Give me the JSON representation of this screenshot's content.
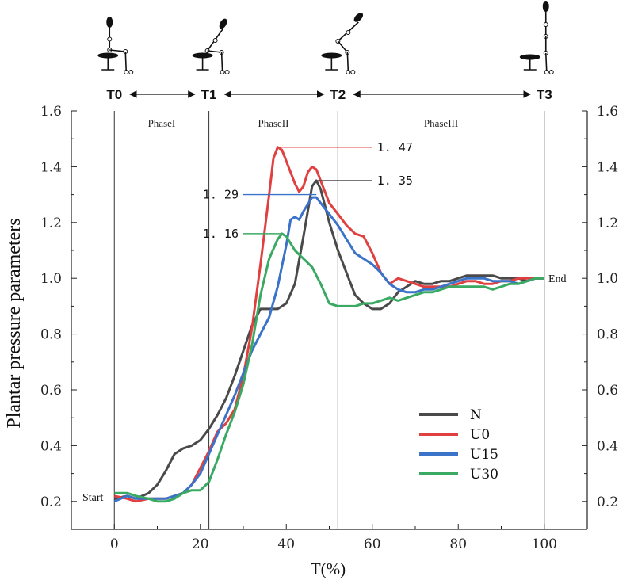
{
  "chart_data": {
    "type": "line",
    "title": "",
    "xlabel": "T(%)",
    "ylabel": "Plantar pressure parameters",
    "xlim": [
      -10,
      110
    ],
    "ylim": [
      0.1,
      1.6
    ],
    "x_ticks": [
      0,
      20,
      40,
      60,
      80,
      100
    ],
    "y_ticks": [
      0.2,
      0.4,
      0.6,
      0.8,
      1.0,
      1.2,
      1.4,
      1.6
    ],
    "y_tick_labels": [
      "0.2",
      "0.4",
      "0.6",
      "0.8",
      "1.0",
      "1.2",
      "1.4",
      "1.6"
    ],
    "phase_markers": [
      {
        "label": "T0",
        "x": 0
      },
      {
        "label": "T1",
        "x": 22
      },
      {
        "label": "T2",
        "x": 52
      },
      {
        "label": "T3",
        "x": 100
      }
    ],
    "phases": [
      {
        "label": "PhaseI",
        "from": 0,
        "to": 22
      },
      {
        "label": "PhaseII",
        "from": 22,
        "to": 52
      },
      {
        "label": "PhaseIII",
        "from": 52,
        "to": 100
      }
    ],
    "start_label": "Start",
    "end_label": "End",
    "legend_position": "lower-right",
    "series": [
      {
        "name": "N",
        "color": "#4a4a4a",
        "points": [
          [
            0,
            0.21
          ],
          [
            3,
            0.22
          ],
          [
            5,
            0.21
          ],
          [
            8,
            0.23
          ],
          [
            10,
            0.26
          ],
          [
            12,
            0.31
          ],
          [
            14,
            0.37
          ],
          [
            16,
            0.39
          ],
          [
            18,
            0.4
          ],
          [
            20,
            0.42
          ],
          [
            22,
            0.46
          ],
          [
            24,
            0.51
          ],
          [
            26,
            0.57
          ],
          [
            28,
            0.65
          ],
          [
            30,
            0.74
          ],
          [
            32,
            0.83
          ],
          [
            34,
            0.89
          ],
          [
            36,
            0.89
          ],
          [
            38,
            0.89
          ],
          [
            40,
            0.91
          ],
          [
            42,
            0.98
          ],
          [
            44,
            1.15
          ],
          [
            46,
            1.33
          ],
          [
            47,
            1.35
          ],
          [
            48,
            1.32
          ],
          [
            50,
            1.2
          ],
          [
            52,
            1.1
          ],
          [
            54,
            1.02
          ],
          [
            56,
            0.94
          ],
          [
            58,
            0.91
          ],
          [
            60,
            0.89
          ],
          [
            62,
            0.89
          ],
          [
            64,
            0.91
          ],
          [
            66,
            0.95
          ],
          [
            68,
            0.97
          ],
          [
            70,
            0.99
          ],
          [
            72,
            0.98
          ],
          [
            74,
            0.98
          ],
          [
            76,
            0.99
          ],
          [
            78,
            0.99
          ],
          [
            80,
            1.0
          ],
          [
            82,
            1.01
          ],
          [
            84,
            1.01
          ],
          [
            86,
            1.01
          ],
          [
            88,
            1.01
          ],
          [
            90,
            1.0
          ],
          [
            92,
            1.0
          ],
          [
            94,
            1.0
          ],
          [
            96,
            0.99
          ],
          [
            98,
            1.0
          ],
          [
            100,
            1.0
          ]
        ]
      },
      {
        "name": "U0",
        "color": "#e04040",
        "points": [
          [
            0,
            0.22
          ],
          [
            3,
            0.21
          ],
          [
            5,
            0.2
          ],
          [
            8,
            0.21
          ],
          [
            10,
            0.21
          ],
          [
            12,
            0.21
          ],
          [
            14,
            0.22
          ],
          [
            16,
            0.23
          ],
          [
            18,
            0.26
          ],
          [
            20,
            0.32
          ],
          [
            22,
            0.38
          ],
          [
            24,
            0.45
          ],
          [
            26,
            0.48
          ],
          [
            28,
            0.53
          ],
          [
            30,
            0.65
          ],
          [
            32,
            0.82
          ],
          [
            34,
            1.05
          ],
          [
            36,
            1.3
          ],
          [
            37,
            1.43
          ],
          [
            38,
            1.47
          ],
          [
            39,
            1.46
          ],
          [
            40,
            1.42
          ],
          [
            42,
            1.34
          ],
          [
            43,
            1.31
          ],
          [
            44,
            1.33
          ],
          [
            45,
            1.38
          ],
          [
            46,
            1.4
          ],
          [
            47,
            1.39
          ],
          [
            48,
            1.35
          ],
          [
            50,
            1.27
          ],
          [
            52,
            1.23
          ],
          [
            54,
            1.19
          ],
          [
            56,
            1.16
          ],
          [
            58,
            1.15
          ],
          [
            60,
            1.09
          ],
          [
            62,
            1.02
          ],
          [
            64,
            0.98
          ],
          [
            66,
            1.0
          ],
          [
            68,
            0.99
          ],
          [
            70,
            0.98
          ],
          [
            72,
            0.97
          ],
          [
            74,
            0.97
          ],
          [
            76,
            0.97
          ],
          [
            78,
            0.97
          ],
          [
            80,
            0.98
          ],
          [
            82,
            0.99
          ],
          [
            84,
            0.99
          ],
          [
            86,
            0.98
          ],
          [
            88,
            0.98
          ],
          [
            90,
            0.99
          ],
          [
            92,
            0.99
          ],
          [
            94,
            1.0
          ],
          [
            96,
            1.0
          ],
          [
            98,
            1.0
          ],
          [
            100,
            1.0
          ]
        ]
      },
      {
        "name": "U15",
        "color": "#3b73c8",
        "points": [
          [
            0,
            0.2
          ],
          [
            3,
            0.22
          ],
          [
            5,
            0.21
          ],
          [
            8,
            0.21
          ],
          [
            10,
            0.21
          ],
          [
            12,
            0.21
          ],
          [
            14,
            0.22
          ],
          [
            16,
            0.23
          ],
          [
            18,
            0.26
          ],
          [
            20,
            0.3
          ],
          [
            22,
            0.37
          ],
          [
            24,
            0.44
          ],
          [
            26,
            0.51
          ],
          [
            28,
            0.58
          ],
          [
            30,
            0.66
          ],
          [
            32,
            0.74
          ],
          [
            34,
            0.8
          ],
          [
            36,
            0.86
          ],
          [
            38,
            0.97
          ],
          [
            40,
            1.12
          ],
          [
            41,
            1.21
          ],
          [
            42,
            1.22
          ],
          [
            43,
            1.21
          ],
          [
            44,
            1.24
          ],
          [
            46,
            1.29
          ],
          [
            47,
            1.29
          ],
          [
            48,
            1.27
          ],
          [
            50,
            1.23
          ],
          [
            52,
            1.19
          ],
          [
            54,
            1.14
          ],
          [
            56,
            1.09
          ],
          [
            58,
            1.07
          ],
          [
            60,
            1.05
          ],
          [
            62,
            1.02
          ],
          [
            64,
            0.98
          ],
          [
            66,
            0.96
          ],
          [
            68,
            0.95
          ],
          [
            70,
            0.95
          ],
          [
            72,
            0.96
          ],
          [
            74,
            0.96
          ],
          [
            76,
            0.97
          ],
          [
            78,
            0.98
          ],
          [
            80,
            0.99
          ],
          [
            82,
            1.0
          ],
          [
            84,
            1.0
          ],
          [
            86,
            1.0
          ],
          [
            88,
            0.99
          ],
          [
            90,
            0.99
          ],
          [
            92,
            0.99
          ],
          [
            94,
            0.98
          ],
          [
            96,
            0.99
          ],
          [
            98,
            1.0
          ],
          [
            100,
            1.0
          ]
        ]
      },
      {
        "name": "U30",
        "color": "#3aaa63",
        "points": [
          [
            0,
            0.23
          ],
          [
            3,
            0.23
          ],
          [
            5,
            0.22
          ],
          [
            8,
            0.21
          ],
          [
            10,
            0.2
          ],
          [
            12,
            0.2
          ],
          [
            14,
            0.21
          ],
          [
            16,
            0.23
          ],
          [
            18,
            0.24
          ],
          [
            20,
            0.24
          ],
          [
            22,
            0.27
          ],
          [
            24,
            0.35
          ],
          [
            26,
            0.44
          ],
          [
            28,
            0.52
          ],
          [
            30,
            0.62
          ],
          [
            32,
            0.76
          ],
          [
            34,
            0.94
          ],
          [
            36,
            1.07
          ],
          [
            38,
            1.14
          ],
          [
            39,
            1.16
          ],
          [
            40,
            1.15
          ],
          [
            42,
            1.1
          ],
          [
            44,
            1.07
          ],
          [
            46,
            1.04
          ],
          [
            48,
            0.98
          ],
          [
            50,
            0.91
          ],
          [
            52,
            0.9
          ],
          [
            54,
            0.9
          ],
          [
            56,
            0.9
          ],
          [
            58,
            0.91
          ],
          [
            60,
            0.91
          ],
          [
            62,
            0.92
          ],
          [
            64,
            0.93
          ],
          [
            66,
            0.92
          ],
          [
            68,
            0.93
          ],
          [
            70,
            0.94
          ],
          [
            72,
            0.95
          ],
          [
            74,
            0.95
          ],
          [
            76,
            0.96
          ],
          [
            78,
            0.97
          ],
          [
            80,
            0.97
          ],
          [
            82,
            0.97
          ],
          [
            84,
            0.97
          ],
          [
            86,
            0.97
          ],
          [
            88,
            0.96
          ],
          [
            90,
            0.97
          ],
          [
            92,
            0.98
          ],
          [
            94,
            0.98
          ],
          [
            96,
            0.99
          ],
          [
            98,
            1.0
          ],
          [
            100,
            1.0
          ]
        ]
      }
    ],
    "annotations": [
      {
        "text": "1. 47",
        "series": "U0",
        "x": 38,
        "y": 1.47,
        "text_x": 60,
        "text_side": "right"
      },
      {
        "text": "1. 35",
        "series": "N",
        "x": 47,
        "y": 1.35,
        "text_x": 60,
        "text_side": "right"
      },
      {
        "text": "1. 29",
        "series": "U15",
        "x": 47,
        "y": 1.3,
        "text_x": 30,
        "text_side": "left"
      },
      {
        "text": "1. 16",
        "series": "U30",
        "x": 39,
        "y": 1.16,
        "text_x": 30,
        "text_side": "left"
      }
    ]
  }
}
